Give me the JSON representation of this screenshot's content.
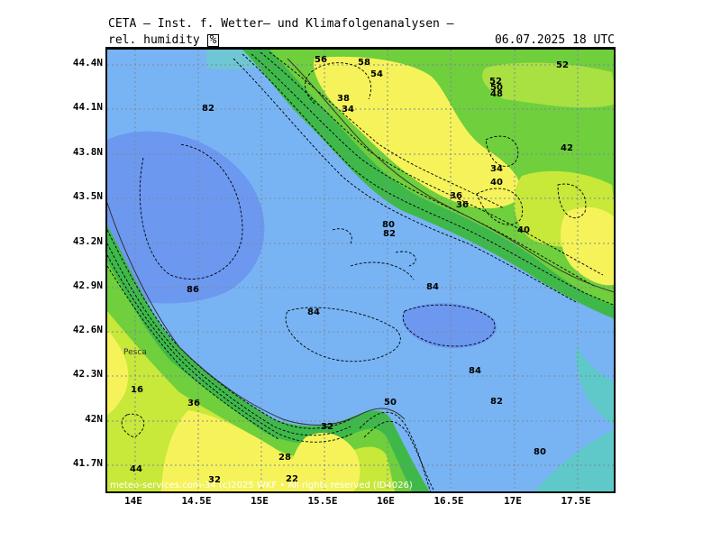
{
  "header": {
    "title": "CETA – Inst. f. Wetter– und Klimafolgenanalysen –",
    "parameter": "rel. humidity",
    "unit": "%",
    "datetime": "06.07.2025 18 UTC"
  },
  "axes": {
    "lat_labels": [
      "44.4N",
      "44.1N",
      "43.8N",
      "43.5N",
      "43.2N",
      "42.9N",
      "42.6N",
      "42.3N",
      "42N",
      "41.7N"
    ],
    "lon_labels": [
      "14E",
      "14.5E",
      "15E",
      "15.5E",
      "16E",
      "16.5E",
      "17E",
      "17.5E"
    ]
  },
  "map": {
    "city_label": "Pesca",
    "copyright": "meteo-services.com-34 (c)2025 WKF • All rights reserved (ID4026)",
    "contour_labels": [
      "56",
      "58",
      "54",
      "52",
      "38",
      "36",
      "34",
      "52",
      "50",
      "48",
      "82",
      "42",
      "34",
      "40",
      "36",
      "86",
      "84",
      "84",
      "84",
      "82",
      "80",
      "80",
      "50",
      "28",
      "22",
      "32",
      "36",
      "32",
      "44",
      "16",
      "40",
      "82"
    ],
    "color_scale": {
      "sea": "#78b4f4",
      "sea_deep": "#6c98f0",
      "coast_green": "#3fb84a",
      "green": "#6fcf3c",
      "yellow_green": "#c8e83a",
      "yellow": "#f6f35a",
      "teal": "#5fc8c8"
    }
  }
}
